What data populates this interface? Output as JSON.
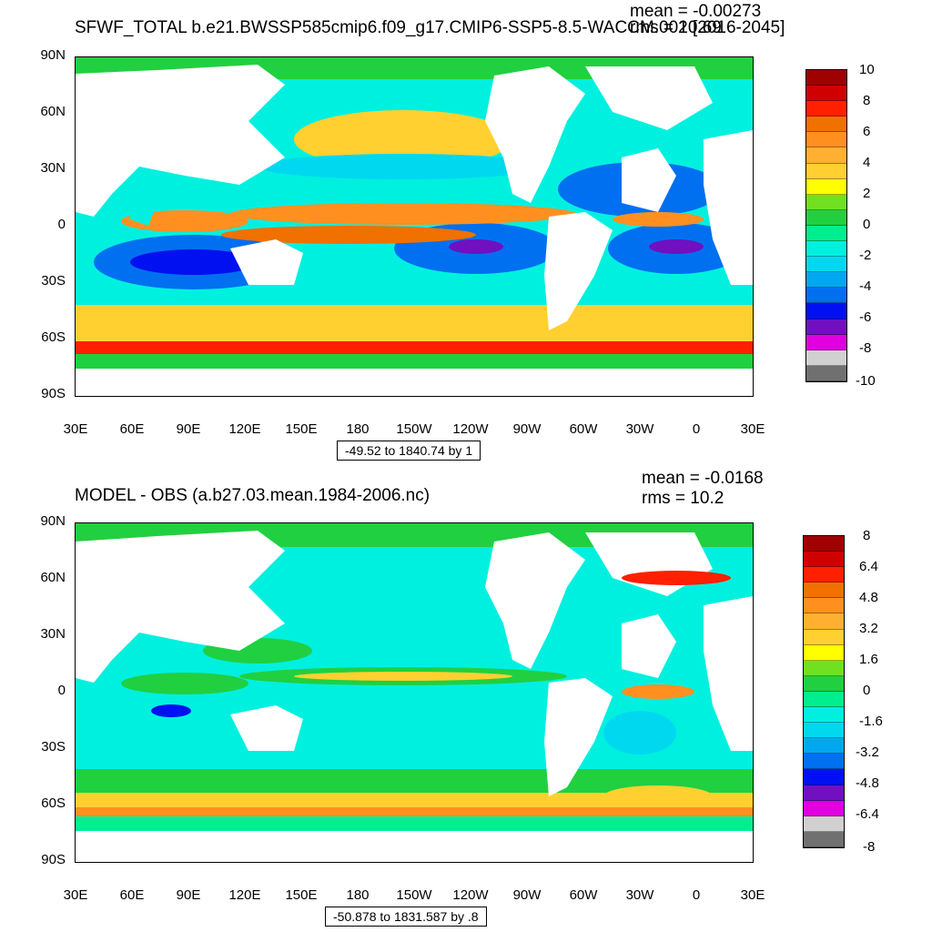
{
  "panels": [
    {
      "title": "SFWF_TOTAL b.e21.BWSSP585cmip6.f09_g17.CMIP6-SSP5-8.5-WACCM.002 [2016-2045]",
      "mean": "mean = -0.00273",
      "rms": "rms = 10.69",
      "lat_labels": [
        "90N",
        "60N",
        "30N",
        "0",
        "30S",
        "60S",
        "90S"
      ],
      "lon_labels": [
        "30E",
        "60E",
        "90E",
        "120E",
        "150E",
        "180",
        "150W",
        "120W",
        "90W",
        "60W",
        "30W",
        "0",
        "30E"
      ],
      "range_text": "-49.52 to 1840.74 by 1",
      "colorbar_labels": [
        "10",
        "8",
        "6",
        "4",
        "2",
        "0",
        "-2",
        "-4",
        "-6",
        "-8",
        "-10"
      ],
      "colorbar_colors": [
        "#a00000",
        "#d00000",
        "#ff2000",
        "#f07000",
        "#ff9020",
        "#ffb030",
        "#ffd030",
        "#ffff00",
        "#70e020",
        "#20d040",
        "#00ee90",
        "#00f0e0",
        "#00d8f0",
        "#00a8f0",
        "#0070f0",
        "#0010f0",
        "#7010c0",
        "#e000e0",
        "#d0d0d0",
        "#707070"
      ]
    },
    {
      "title": "MODEL - OBS (a.b27.03.mean.1984-2006.nc)",
      "mean": "mean = -0.0168",
      "rms": "rms = 10.2",
      "lat_labels": [
        "90N",
        "60N",
        "30N",
        "0",
        "30S",
        "60S",
        "90S"
      ],
      "lon_labels": [
        "30E",
        "60E",
        "90E",
        "120E",
        "150E",
        "180",
        "150W",
        "120W",
        "90W",
        "60W",
        "30W",
        "0",
        "30E"
      ],
      "range_text": "-50.878 to 1831.587 by .8",
      "colorbar_labels": [
        "8",
        "6.4",
        "4.8",
        "3.2",
        "1.6",
        "0",
        "-1.6",
        "-3.2",
        "-4.8",
        "-6.4",
        "-8"
      ],
      "colorbar_colors": [
        "#a00000",
        "#d00000",
        "#ff2000",
        "#f07000",
        "#ff9020",
        "#ffb030",
        "#ffd030",
        "#ffff00",
        "#70e020",
        "#20d040",
        "#00ee90",
        "#00f0e0",
        "#00d8f0",
        "#00a8f0",
        "#0070f0",
        "#0010f0",
        "#7010c0",
        "#e000e0",
        "#d0d0d0",
        "#707070"
      ]
    }
  ]
}
